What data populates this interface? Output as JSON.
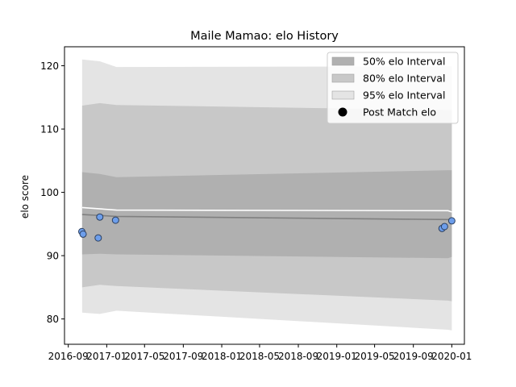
{
  "chart_data": {
    "type": "line",
    "title": "Maile Mamao: elo History",
    "xlabel": "",
    "ylabel": "elo score",
    "x_ticks": [
      "2016-09",
      "2017-01",
      "2017-05",
      "2017-09",
      "2018-01",
      "2018-05",
      "2018-09",
      "2019-01",
      "2019-05",
      "2019-09",
      "2020-01"
    ],
    "y_ticks": [
      80,
      90,
      100,
      110,
      120
    ],
    "xlim": [
      "2016-08-20",
      "2020-02-10"
    ],
    "ylim": [
      76,
      123
    ],
    "grid": false,
    "legend_position": "top-right",
    "legend": [
      {
        "label": "50% elo Interval",
        "color": "#b0b0b0",
        "kind": "patch"
      },
      {
        "label": "80% elo Interval",
        "color": "#c8c8c8",
        "kind": "patch"
      },
      {
        "label": "95% elo Interval",
        "color": "#e4e4e4",
        "kind": "patch"
      },
      {
        "label": "Post Match elo",
        "color": "#000000",
        "kind": "marker"
      }
    ],
    "dates": [
      "2016-10-15",
      "2016-12-10",
      "2017-02-01",
      "2019-12-20",
      "2020-01-01"
    ],
    "bands": {
      "band_95": {
        "upper": [
          121.0,
          120.7,
          119.8,
          119.9,
          119.9
        ],
        "lower": [
          81.0,
          80.8,
          81.3,
          78.3,
          78.2
        ]
      },
      "band_80": {
        "upper": [
          113.7,
          114.1,
          113.8,
          113.0,
          113.0
        ],
        "lower": [
          85.0,
          85.4,
          85.2,
          82.9,
          82.8
        ]
      },
      "band_50": {
        "upper": [
          103.2,
          102.9,
          102.4,
          103.5,
          103.5
        ],
        "lower": [
          90.2,
          90.3,
          90.2,
          89.6,
          89.8
        ]
      }
    },
    "series": [
      {
        "style": "line",
        "color": "#808080",
        "x": [
          "2016-10-15",
          "2017-02-01",
          "2019-12-20",
          "2020-01-01"
        ],
        "values": [
          96.5,
          96.2,
          95.7,
          95.8
        ]
      },
      {
        "style": "line",
        "color": "#ffffff",
        "x": [
          "2016-10-15",
          "2017-02-01",
          "2019-12-20",
          "2020-01-01"
        ],
        "values": [
          97.6,
          97.2,
          97.1,
          96.9
        ]
      },
      {
        "style": "scatter",
        "color": "#6d9eeb",
        "edge_color": "#2b3f5f",
        "x": [
          "2016-10-14",
          "2016-10-18",
          "2016-12-05",
          "2016-12-10",
          "2017-01-29",
          "2019-12-01",
          "2019-12-09",
          "2020-01-01"
        ],
        "values": [
          93.8,
          93.4,
          92.8,
          96.1,
          95.6,
          94.3,
          94.6,
          95.5
        ]
      }
    ]
  }
}
